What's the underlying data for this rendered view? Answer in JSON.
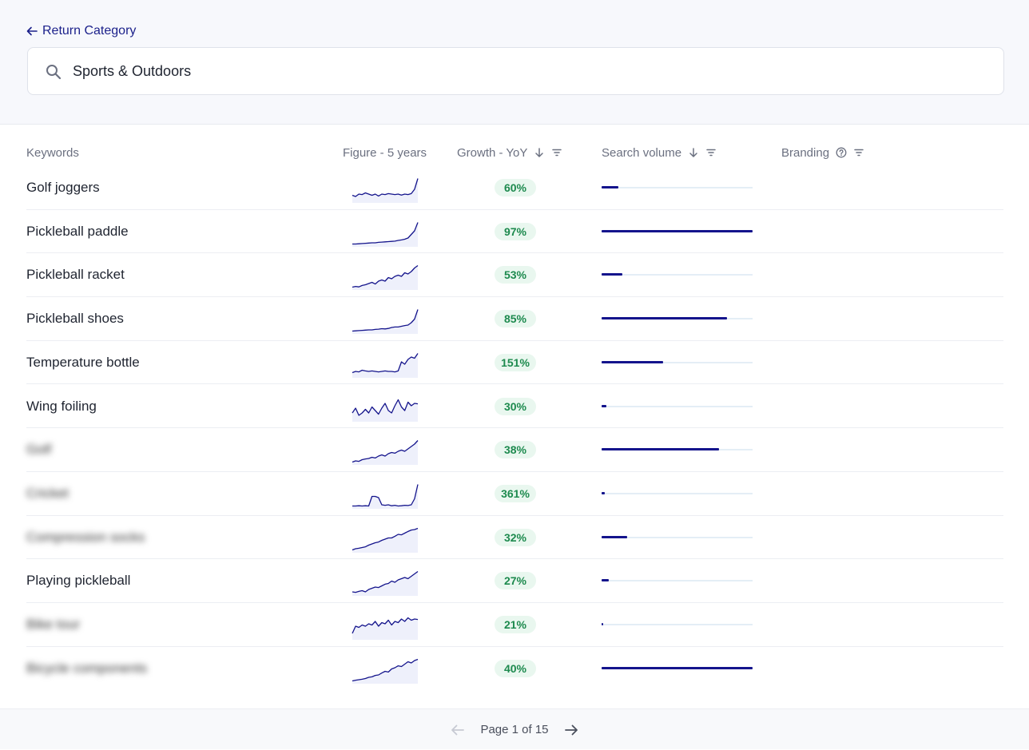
{
  "nav": {
    "back_label": "Return Category"
  },
  "search": {
    "value": "Sports & Outdoors",
    "placeholder": ""
  },
  "columns": {
    "keywords": "Keywords",
    "figure": "Figure - 5 years",
    "growth": "Growth - YoY",
    "volume": "Search volume",
    "branding": "Branding"
  },
  "rows": [
    {
      "keyword": "Golf joggers",
      "blurred": false,
      "growth": "60%",
      "volume_fraction": 0.11,
      "trend": [
        0.25,
        0.2,
        0.3,
        0.28,
        0.35,
        0.3,
        0.25,
        0.3,
        0.22,
        0.3,
        0.28,
        0.32,
        0.3,
        0.28,
        0.3,
        0.26,
        0.3,
        0.28,
        0.32,
        0.5,
        0.95
      ]
    },
    {
      "keyword": "Pickleball paddle",
      "blurred": false,
      "growth": "97%",
      "volume_fraction": 1.0,
      "trend": [
        0.05,
        0.05,
        0.06,
        0.07,
        0.08,
        0.09,
        0.1,
        0.1,
        0.12,
        0.13,
        0.14,
        0.15,
        0.16,
        0.17,
        0.2,
        0.22,
        0.25,
        0.3,
        0.45,
        0.6,
        0.95
      ]
    },
    {
      "keyword": "Pickleball racket",
      "blurred": false,
      "growth": "53%",
      "volume_fraction": 0.14,
      "trend": [
        0.05,
        0.08,
        0.06,
        0.12,
        0.15,
        0.2,
        0.25,
        0.18,
        0.3,
        0.35,
        0.3,
        0.45,
        0.4,
        0.5,
        0.55,
        0.5,
        0.65,
        0.6,
        0.7,
        0.85,
        0.95
      ]
    },
    {
      "keyword": "Pickleball shoes",
      "blurred": false,
      "growth": "85%",
      "volume_fraction": 0.83,
      "trend": [
        0.05,
        0.06,
        0.07,
        0.08,
        0.09,
        0.1,
        0.1,
        0.12,
        0.13,
        0.15,
        0.14,
        0.16,
        0.2,
        0.22,
        0.22,
        0.25,
        0.28,
        0.3,
        0.4,
        0.55,
        0.95
      ]
    },
    {
      "keyword": "Temperature bottle",
      "blurred": false,
      "growth": "151%",
      "volume_fraction": 0.41,
      "trend": [
        0.15,
        0.2,
        0.18,
        0.25,
        0.22,
        0.2,
        0.22,
        0.2,
        0.18,
        0.2,
        0.22,
        0.2,
        0.2,
        0.18,
        0.22,
        0.6,
        0.5,
        0.7,
        0.8,
        0.75,
        0.95
      ]
    },
    {
      "keyword": "Wing foiling",
      "blurred": false,
      "growth": "30%",
      "volume_fraction": 0.03,
      "trend": [
        0.3,
        0.5,
        0.2,
        0.3,
        0.45,
        0.3,
        0.55,
        0.4,
        0.25,
        0.5,
        0.7,
        0.4,
        0.3,
        0.6,
        0.85,
        0.55,
        0.4,
        0.75,
        0.6,
        0.7,
        0.68
      ]
    },
    {
      "keyword": "Golf",
      "blurred": true,
      "growth": "38%",
      "volume_fraction": 0.78,
      "trend": [
        0.05,
        0.1,
        0.08,
        0.15,
        0.18,
        0.2,
        0.25,
        0.22,
        0.3,
        0.35,
        0.3,
        0.4,
        0.45,
        0.42,
        0.5,
        0.55,
        0.5,
        0.6,
        0.7,
        0.8,
        0.95
      ]
    },
    {
      "keyword": "Cricket",
      "blurred": true,
      "growth": "361%",
      "volume_fraction": 0.02,
      "trend": [
        0.05,
        0.05,
        0.06,
        0.05,
        0.06,
        0.05,
        0.45,
        0.45,
        0.4,
        0.1,
        0.08,
        0.1,
        0.06,
        0.08,
        0.05,
        0.06,
        0.08,
        0.07,
        0.1,
        0.35,
        0.95
      ]
    },
    {
      "keyword": "Compression socks",
      "blurred": true,
      "growth": "32%",
      "volume_fraction": 0.17,
      "trend": [
        0.05,
        0.1,
        0.12,
        0.15,
        0.18,
        0.25,
        0.3,
        0.35,
        0.38,
        0.45,
        0.5,
        0.55,
        0.55,
        0.62,
        0.7,
        0.68,
        0.75,
        0.82,
        0.88,
        0.9,
        0.95
      ]
    },
    {
      "keyword": "Playing pickleball",
      "blurred": false,
      "growth": "27%",
      "volume_fraction": 0.05,
      "trend": [
        0.1,
        0.08,
        0.12,
        0.15,
        0.1,
        0.2,
        0.25,
        0.3,
        0.28,
        0.35,
        0.42,
        0.45,
        0.55,
        0.5,
        0.6,
        0.65,
        0.7,
        0.65,
        0.75,
        0.85,
        0.95
      ]
    },
    {
      "keyword": "Bike tour",
      "blurred": true,
      "growth": "21%",
      "volume_fraction": 0.005,
      "trend": [
        0.2,
        0.5,
        0.45,
        0.55,
        0.5,
        0.6,
        0.55,
        0.7,
        0.5,
        0.65,
        0.6,
        0.75,
        0.55,
        0.7,
        0.65,
        0.8,
        0.7,
        0.85,
        0.75,
        0.8,
        0.78
      ]
    },
    {
      "keyword": "Bicycle components",
      "blurred": true,
      "growth": "40%",
      "volume_fraction": 1.0,
      "trend": [
        0.05,
        0.08,
        0.1,
        0.12,
        0.15,
        0.2,
        0.22,
        0.28,
        0.3,
        0.38,
        0.45,
        0.42,
        0.55,
        0.6,
        0.68,
        0.65,
        0.75,
        0.85,
        0.8,
        0.9,
        0.95
      ]
    }
  ],
  "pagination": {
    "label": "Page 1 of 15"
  },
  "colors": {
    "accent": "#14148c",
    "growth_text": "#1d8a4e",
    "growth_bg": "#e9f7ef",
    "track": "#e4eef6",
    "link": "#1a1f8a"
  },
  "icons": {
    "back": "arrow-left-icon",
    "search": "search-icon",
    "sort": "arrow-down-icon",
    "filter": "filter-icon",
    "help": "help-circle-icon"
  }
}
